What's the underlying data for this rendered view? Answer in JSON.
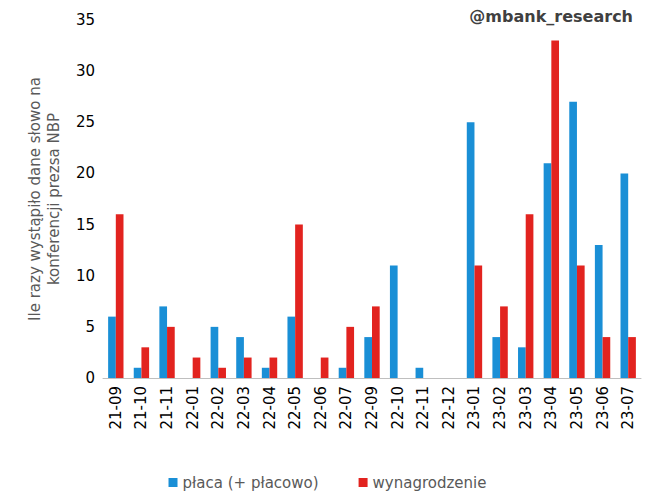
{
  "chart_data": {
    "type": "bar",
    "annotation": "@mbank_research",
    "y_label": "Ile razy wystąpiło dane słowo na\nkonferencji prezsa NBP",
    "categories": [
      "21-09",
      "21-10",
      "21-11",
      "22-01",
      "22-02",
      "22-03",
      "22-04",
      "22-05",
      "22-06",
      "22-07",
      "22-09",
      "22-10",
      "22-11",
      "22-12",
      "23-01",
      "23-02",
      "23-03",
      "23-04",
      "23-05",
      "23-06",
      "23-07"
    ],
    "series": [
      {
        "name": "płaca (+ płacowo)",
        "color": "#1a8fd6",
        "values": [
          6,
          1,
          7,
          0,
          5,
          4,
          1,
          6,
          0,
          1,
          4,
          11,
          1,
          0,
          25,
          4,
          3,
          21,
          27,
          13,
          20
        ]
      },
      {
        "name": "wynagrodzenie",
        "color": "#e2231f",
        "values": [
          16,
          3,
          5,
          2,
          1,
          2,
          2,
          15,
          2,
          5,
          7,
          0,
          0,
          0,
          11,
          7,
          16,
          33,
          11,
          4,
          4
        ]
      }
    ],
    "ylim": [
      0,
      35
    ],
    "yticks": [
      0,
      5,
      10,
      15,
      20,
      25,
      30,
      35
    ],
    "grid": false,
    "legend": "bottom"
  }
}
